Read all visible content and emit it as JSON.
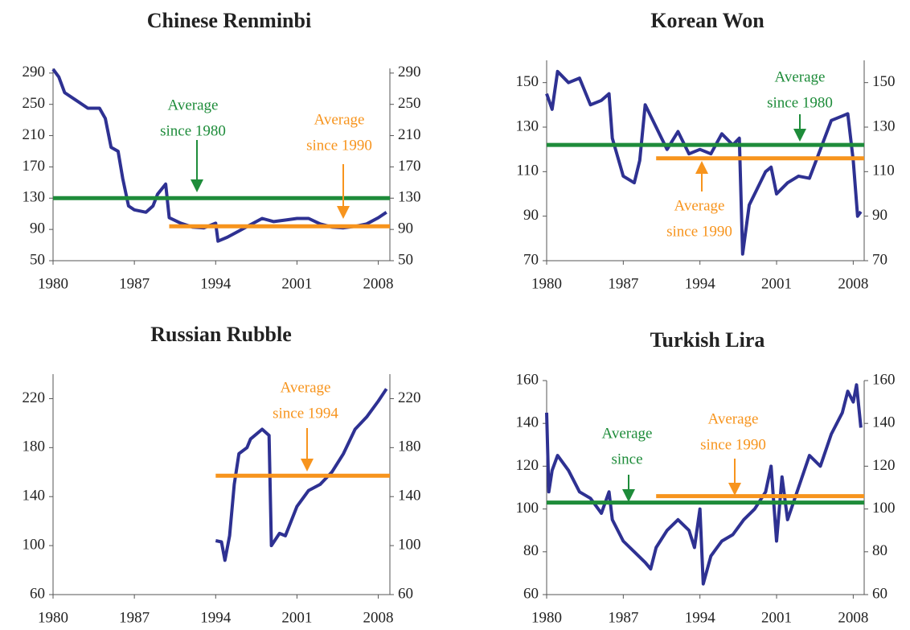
{
  "chart_data": [
    {
      "type": "line",
      "title": "Chinese Renminbi",
      "xlim": [
        1980,
        2009
      ],
      "xticks": [
        1980,
        1987,
        1994,
        2001,
        2008
      ],
      "ylim": [
        50,
        296
      ],
      "yticks": [
        50,
        90,
        130,
        170,
        210,
        250,
        290
      ],
      "series": [
        {
          "color": "#2e3192",
          "x": [
            1980,
            1980.5,
            1981,
            1982,
            1983,
            1984,
            1984.5,
            1985,
            1985.6,
            1986,
            1986.5,
            1987,
            1988,
            1988.6,
            1989,
            1989.7,
            1990,
            1991,
            1992,
            1993,
            1994,
            1994.2,
            1995,
            1996,
            1997,
            1998,
            1999,
            2000,
            2001,
            2002,
            2003,
            2004,
            2005,
            2006,
            2007,
            2008,
            2008.7
          ],
          "values": [
            295,
            285,
            265,
            255,
            245,
            245,
            232,
            195,
            190,
            155,
            120,
            115,
            112,
            120,
            135,
            148,
            105,
            98,
            93,
            92,
            98,
            75,
            80,
            88,
            96,
            104,
            100,
            102,
            104,
            104,
            97,
            93,
            92,
            94,
            97,
            105,
            112
          ]
        },
        {
          "color": "#1e8c3a",
          "x": [
            1980,
            2009
          ],
          "values": [
            130,
            130
          ]
        },
        {
          "color": "#f7941d",
          "x": [
            1990,
            2009
          ],
          "values": [
            94,
            94
          ]
        }
      ],
      "annotations": [
        {
          "lines": [
            "Average",
            "since 1980"
          ],
          "color": "#1e8c3a"
        },
        {
          "lines": [
            "Average",
            "since 1990"
          ],
          "color": "#f7941d"
        }
      ]
    },
    {
      "type": "line",
      "title": "Korean Won",
      "xlim": [
        1980,
        2009
      ],
      "xticks": [
        1980,
        1987,
        1994,
        2001,
        2008
      ],
      "ylim": [
        70,
        160
      ],
      "yticks": [
        70,
        90,
        110,
        130,
        150
      ],
      "series": [
        {
          "color": "#2e3192",
          "x": [
            1980,
            1980.5,
            1981,
            1982,
            1983,
            1984,
            1985,
            1985.7,
            1986,
            1987,
            1988,
            1988.5,
            1989,
            1990,
            1991,
            1992,
            1993,
            1994,
            1995,
            1996,
            1997,
            1997.6,
            1997.9,
            1998.5,
            1999,
            2000,
            2000.5,
            2001,
            2002,
            2003,
            2004,
            2005,
            2006,
            2007,
            2007.5,
            2008,
            2008.4,
            2008.7
          ],
          "values": [
            145,
            138,
            155,
            150,
            152,
            140,
            142,
            145,
            125,
            108,
            105,
            115,
            140,
            130,
            120,
            128,
            118,
            120,
            118,
            127,
            122,
            125,
            73,
            95,
            100,
            110,
            112,
            100,
            105,
            108,
            107,
            120,
            133,
            135,
            136,
            115,
            90,
            92
          ]
        },
        {
          "color": "#1e8c3a",
          "x": [
            1980,
            2009
          ],
          "values": [
            122,
            122
          ]
        },
        {
          "color": "#f7941d",
          "x": [
            1990,
            2009
          ],
          "values": [
            116,
            116
          ]
        }
      ],
      "annotations": [
        {
          "lines": [
            "Average",
            "since 1980"
          ],
          "color": "#1e8c3a"
        },
        {
          "lines": [
            "Average",
            "since 1990"
          ],
          "color": "#f7941d"
        }
      ]
    },
    {
      "type": "line",
      "title": "Russian Rubble",
      "xlim": [
        1980,
        2009
      ],
      "xticks": [
        1980,
        1987,
        1994,
        2001,
        2008
      ],
      "ylim": [
        60,
        240
      ],
      "yticks": [
        60,
        100,
        140,
        180,
        220
      ],
      "series": [
        {
          "color": "#2e3192",
          "x": [
            1994,
            1994.5,
            1994.8,
            1995.2,
            1995.6,
            1996,
            1996.7,
            1997,
            1998,
            1998.6,
            1998.8,
            1999.5,
            2000,
            2001,
            2002,
            2003,
            2004,
            2005,
            2006,
            2007,
            2008,
            2008.7
          ],
          "values": [
            104,
            103,
            88,
            108,
            150,
            175,
            180,
            187,
            195,
            190,
            100,
            110,
            108,
            132,
            145,
            150,
            160,
            175,
            195,
            205,
            218,
            228
          ]
        },
        {
          "color": "#f7941d",
          "x": [
            1994,
            2009
          ],
          "values": [
            157,
            157
          ]
        }
      ],
      "annotations": [
        {
          "lines": [
            "Average",
            "since 1994"
          ],
          "color": "#f7941d"
        }
      ]
    },
    {
      "type": "line",
      "title": "Turkish Lira",
      "xlim": [
        1980,
        2009
      ],
      "xticks": [
        1980,
        1987,
        1994,
        2001,
        2008
      ],
      "ylim": [
        60,
        160
      ],
      "yticks": [
        60,
        80,
        100,
        120,
        140,
        160
      ],
      "series": [
        {
          "color": "#2e3192",
          "x": [
            1980,
            1980.2,
            1980.5,
            1981,
            1982,
            1983,
            1984,
            1985,
            1985.7,
            1986,
            1987,
            1988,
            1989,
            1989.5,
            1990,
            1991,
            1992,
            1993,
            1993.5,
            1994,
            1994.3,
            1995,
            1996,
            1997,
            1998,
            1999,
            2000,
            2000.5,
            2001,
            2001.5,
            2002,
            2003,
            2004,
            2005,
            2006,
            2007,
            2007.5,
            2008,
            2008.3,
            2008.7
          ],
          "values": [
            145,
            108,
            118,
            125,
            118,
            108,
            105,
            98,
            108,
            95,
            85,
            80,
            75,
            72,
            82,
            90,
            95,
            90,
            82,
            100,
            65,
            78,
            85,
            88,
            95,
            100,
            108,
            120,
            85,
            115,
            95,
            110,
            125,
            120,
            135,
            145,
            155,
            150,
            158,
            138
          ]
        },
        {
          "color": "#1e8c3a",
          "x": [
            1980,
            2009
          ],
          "values": [
            103,
            103
          ]
        },
        {
          "color": "#f7941d",
          "x": [
            1990,
            2009
          ],
          "values": [
            106,
            106
          ]
        }
      ],
      "annotations": [
        {
          "lines": [
            "Average",
            "since"
          ],
          "color": "#1e8c3a"
        },
        {
          "lines": [
            "Average",
            "since 1990"
          ],
          "color": "#f7941d"
        }
      ]
    }
  ]
}
